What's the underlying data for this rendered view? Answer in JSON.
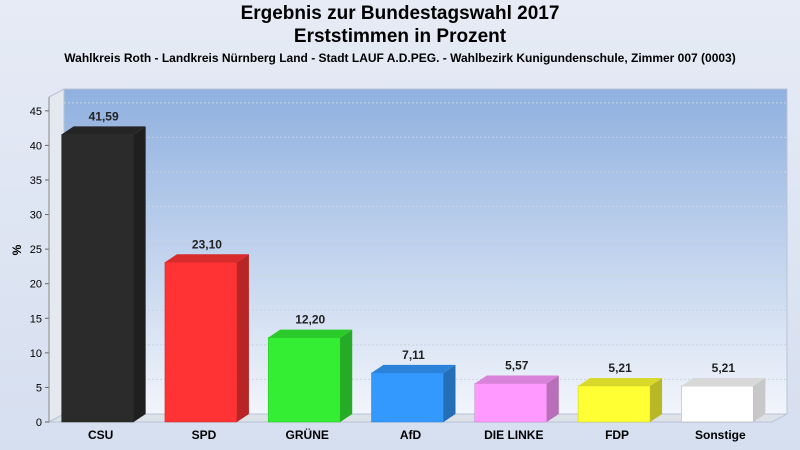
{
  "chart_data": {
    "type": "bar",
    "title_lines": [
      "Ergebnis zur Bundestagswahl 2017",
      "Erststimmen in Prozent"
    ],
    "subtitle": "Wahlkreis Roth - Landkreis Nürnberg Land - Stadt LAUF A.D.PEG. - Wahlbezirk Kunigundenschule, Zimmer 007 (0003)",
    "ylabel": "%",
    "xlabel": "",
    "ylim": [
      0,
      47
    ],
    "yticks": [
      0,
      5,
      10,
      15,
      20,
      25,
      30,
      35,
      40,
      45
    ],
    "categories": [
      "CSU",
      "SPD",
      "GRÜNE",
      "AfD",
      "DIE LINKE",
      "FDP",
      "Sonstige"
    ],
    "values": [
      41.59,
      23.1,
      12.2,
      7.11,
      5.57,
      5.21,
      5.21
    ],
    "value_labels": [
      "41,59",
      "23,10",
      "12,20",
      "7,11",
      "5,57",
      "5,21",
      "5,21"
    ],
    "colors": [
      "#2b2b2b",
      "#ff3333",
      "#33ee33",
      "#3399ff",
      "#ff99ff",
      "#ffff33",
      "#ffffff"
    ],
    "grid": true,
    "legend": "none"
  }
}
